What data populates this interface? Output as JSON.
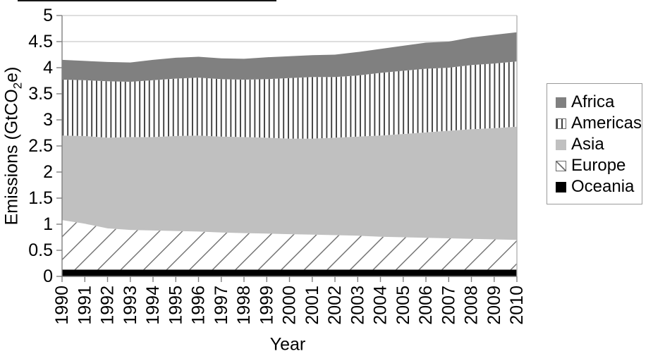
{
  "chart_data": {
    "type": "area",
    "stacked": true,
    "title": "",
    "xlabel": "Year",
    "ylabel": "Emissions (GtCO2e)",
    "ylabel_parts": {
      "pre": "Emissions (GtCO",
      "sub": "2",
      "post": "e)"
    },
    "x": [
      "1990",
      "1991",
      "1992",
      "1993",
      "1994",
      "1995",
      "1996",
      "1997",
      "1998",
      "1999",
      "2000",
      "2001",
      "2002",
      "2003",
      "2004",
      "2005",
      "2006",
      "2007",
      "2008",
      "2009",
      "2010"
    ],
    "ylim": [
      0,
      5
    ],
    "yticks": [
      0,
      0.5,
      1,
      1.5,
      2,
      2.5,
      3,
      3.5,
      4,
      4.5,
      5
    ],
    "ytick_labels": [
      "0",
      "0.5",
      "1",
      "1.5",
      "2",
      "2.5",
      "3",
      "3.5",
      "4",
      "4.5",
      "5"
    ],
    "grid": true,
    "series": [
      {
        "name": "Oceania",
        "fill": "#000000",
        "values": [
          0.13,
          0.13,
          0.13,
          0.13,
          0.13,
          0.13,
          0.13,
          0.13,
          0.13,
          0.13,
          0.13,
          0.13,
          0.13,
          0.13,
          0.13,
          0.13,
          0.13,
          0.13,
          0.13,
          0.13,
          0.13
        ]
      },
      {
        "name": "Europe",
        "fill": "pat-europe",
        "values": [
          0.95,
          0.88,
          0.79,
          0.76,
          0.75,
          0.74,
          0.73,
          0.71,
          0.7,
          0.69,
          0.68,
          0.67,
          0.66,
          0.65,
          0.63,
          0.62,
          0.61,
          0.6,
          0.59,
          0.58,
          0.57
        ]
      },
      {
        "name": "Asia",
        "fill": "#c0c0c0",
        "values": [
          1.62,
          1.68,
          1.74,
          1.78,
          1.79,
          1.82,
          1.84,
          1.84,
          1.84,
          1.84,
          1.83,
          1.84,
          1.87,
          1.9,
          1.94,
          1.98,
          2.02,
          2.06,
          2.1,
          2.13,
          2.17
        ]
      },
      {
        "name": "Americas",
        "fill": "pat-americas",
        "values": [
          1.07,
          1.07,
          1.08,
          1.06,
          1.09,
          1.1,
          1.11,
          1.1,
          1.1,
          1.12,
          1.16,
          1.18,
          1.16,
          1.17,
          1.2,
          1.21,
          1.22,
          1.21,
          1.23,
          1.24,
          1.25
        ]
      },
      {
        "name": "Africa",
        "fill": "#808080",
        "values": [
          0.38,
          0.37,
          0.37,
          0.37,
          0.39,
          0.4,
          0.4,
          0.4,
          0.4,
          0.42,
          0.42,
          0.42,
          0.43,
          0.45,
          0.46,
          0.48,
          0.5,
          0.5,
          0.53,
          0.55,
          0.56
        ]
      }
    ],
    "legend": {
      "position": "right",
      "items": [
        {
          "label": "Africa",
          "swatch": "africa"
        },
        {
          "label": "Americas",
          "swatch": "americas"
        },
        {
          "label": "Asia",
          "swatch": "asia"
        },
        {
          "label": "Europe",
          "swatch": "europe"
        },
        {
          "label": "Oceania",
          "swatch": "oceania"
        }
      ]
    },
    "colors": {
      "africa": "#808080",
      "americas_stripe": "#3f3f3f",
      "asia": "#c0c0c0",
      "europe_stripe": "#6e6e6e",
      "oceania": "#000000",
      "grid": "#d4d4d4",
      "axis": "#808080",
      "plot_border": "#b4b4b4",
      "text": "#000000"
    }
  }
}
